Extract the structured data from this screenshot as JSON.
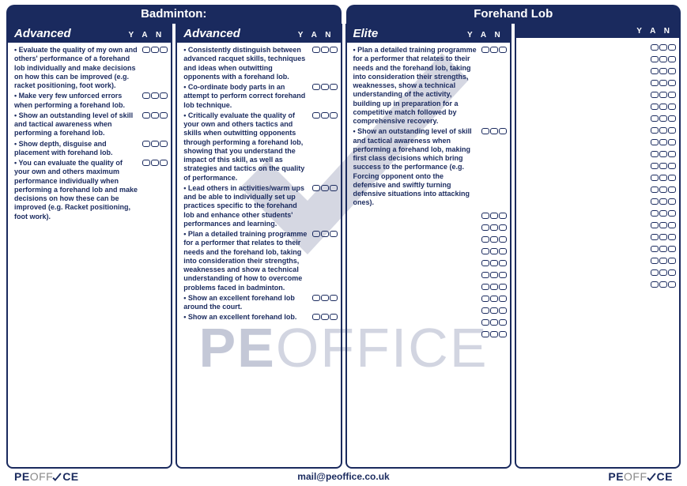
{
  "colors": {
    "brand": "#1a2a5e",
    "watermark": "#8b93b0",
    "background": "#ffffff"
  },
  "title_left": "Badminton:",
  "title_right": "Forehand Lob",
  "yan_label": "Y A N",
  "footer": {
    "email": "mail@peoffice.co.uk",
    "logo_pe": "PE",
    "logo_off": "OFF",
    "logo_ice": "CE"
  },
  "watermark": {
    "pe": "PE",
    "office": "OFFICE"
  },
  "columns": [
    {
      "level": "Advanced",
      "items": [
        "Evaluate the quality of my own and others' performance of a forehand lob individually and make decisions on how this can be improved (e.g. racket positioning, foot work).",
        "Make very few unforced errors when performing a forehand lob.",
        "Show an outstanding level of skill and tactical awareness when performing a forehand lob.",
        "Show depth, disguise and placement with forehand lob.",
        "You can evaluate the quality of your own and others maximum performance individually when performing a forehand lob and make decisions on how these can be improved (e.g. Racket positioning, foot work)."
      ]
    },
    {
      "level": "Advanced",
      "items": [
        "Consistently distinguish between advanced racquet skills, techniques and ideas when outwitting opponents with a forehand lob.",
        "Co-ordinate body parts in an attempt to perform correct forehand lob technique.",
        "Critically evaluate the quality of your own and others tactics and skills when outwitting opponents through performing a forehand lob, showing that you understand the impact of this skill, as well as strategies and tactics on the quality of performance.",
        "Lead others in activities/warm ups and be able to individually set up practices specific to the forehand lob and enhance other students' performances and learning.",
        "Plan a detailed training programme for a performer that relates to their needs and the forehand lob, taking into consideration their strengths, weaknesses and show a technical understanding of how to overcome problems faced in badminton.",
        "Show an excellent forehand lob around the court.",
        "Show an excellent forehand lob."
      ]
    },
    {
      "level": "Elite",
      "items": [
        "Plan a detailed training programme for a performer that relates to their needs and the forehand lob, taking into consideration their strengths, weaknesses, show a technical understanding of the activity, building up in preparation for a competitive match followed by comprehensive recovery.",
        "Show an outstanding level of skill and tactical awareness when performing a forehand lob, making first class decisions which bring success to the performance (e.g. Forcing opponent onto the defensive and swiftly turning defensive situations into attacking ones)."
      ],
      "extra_rows": 11
    },
    {
      "level": "",
      "items": [],
      "extra_rows": 21
    }
  ]
}
